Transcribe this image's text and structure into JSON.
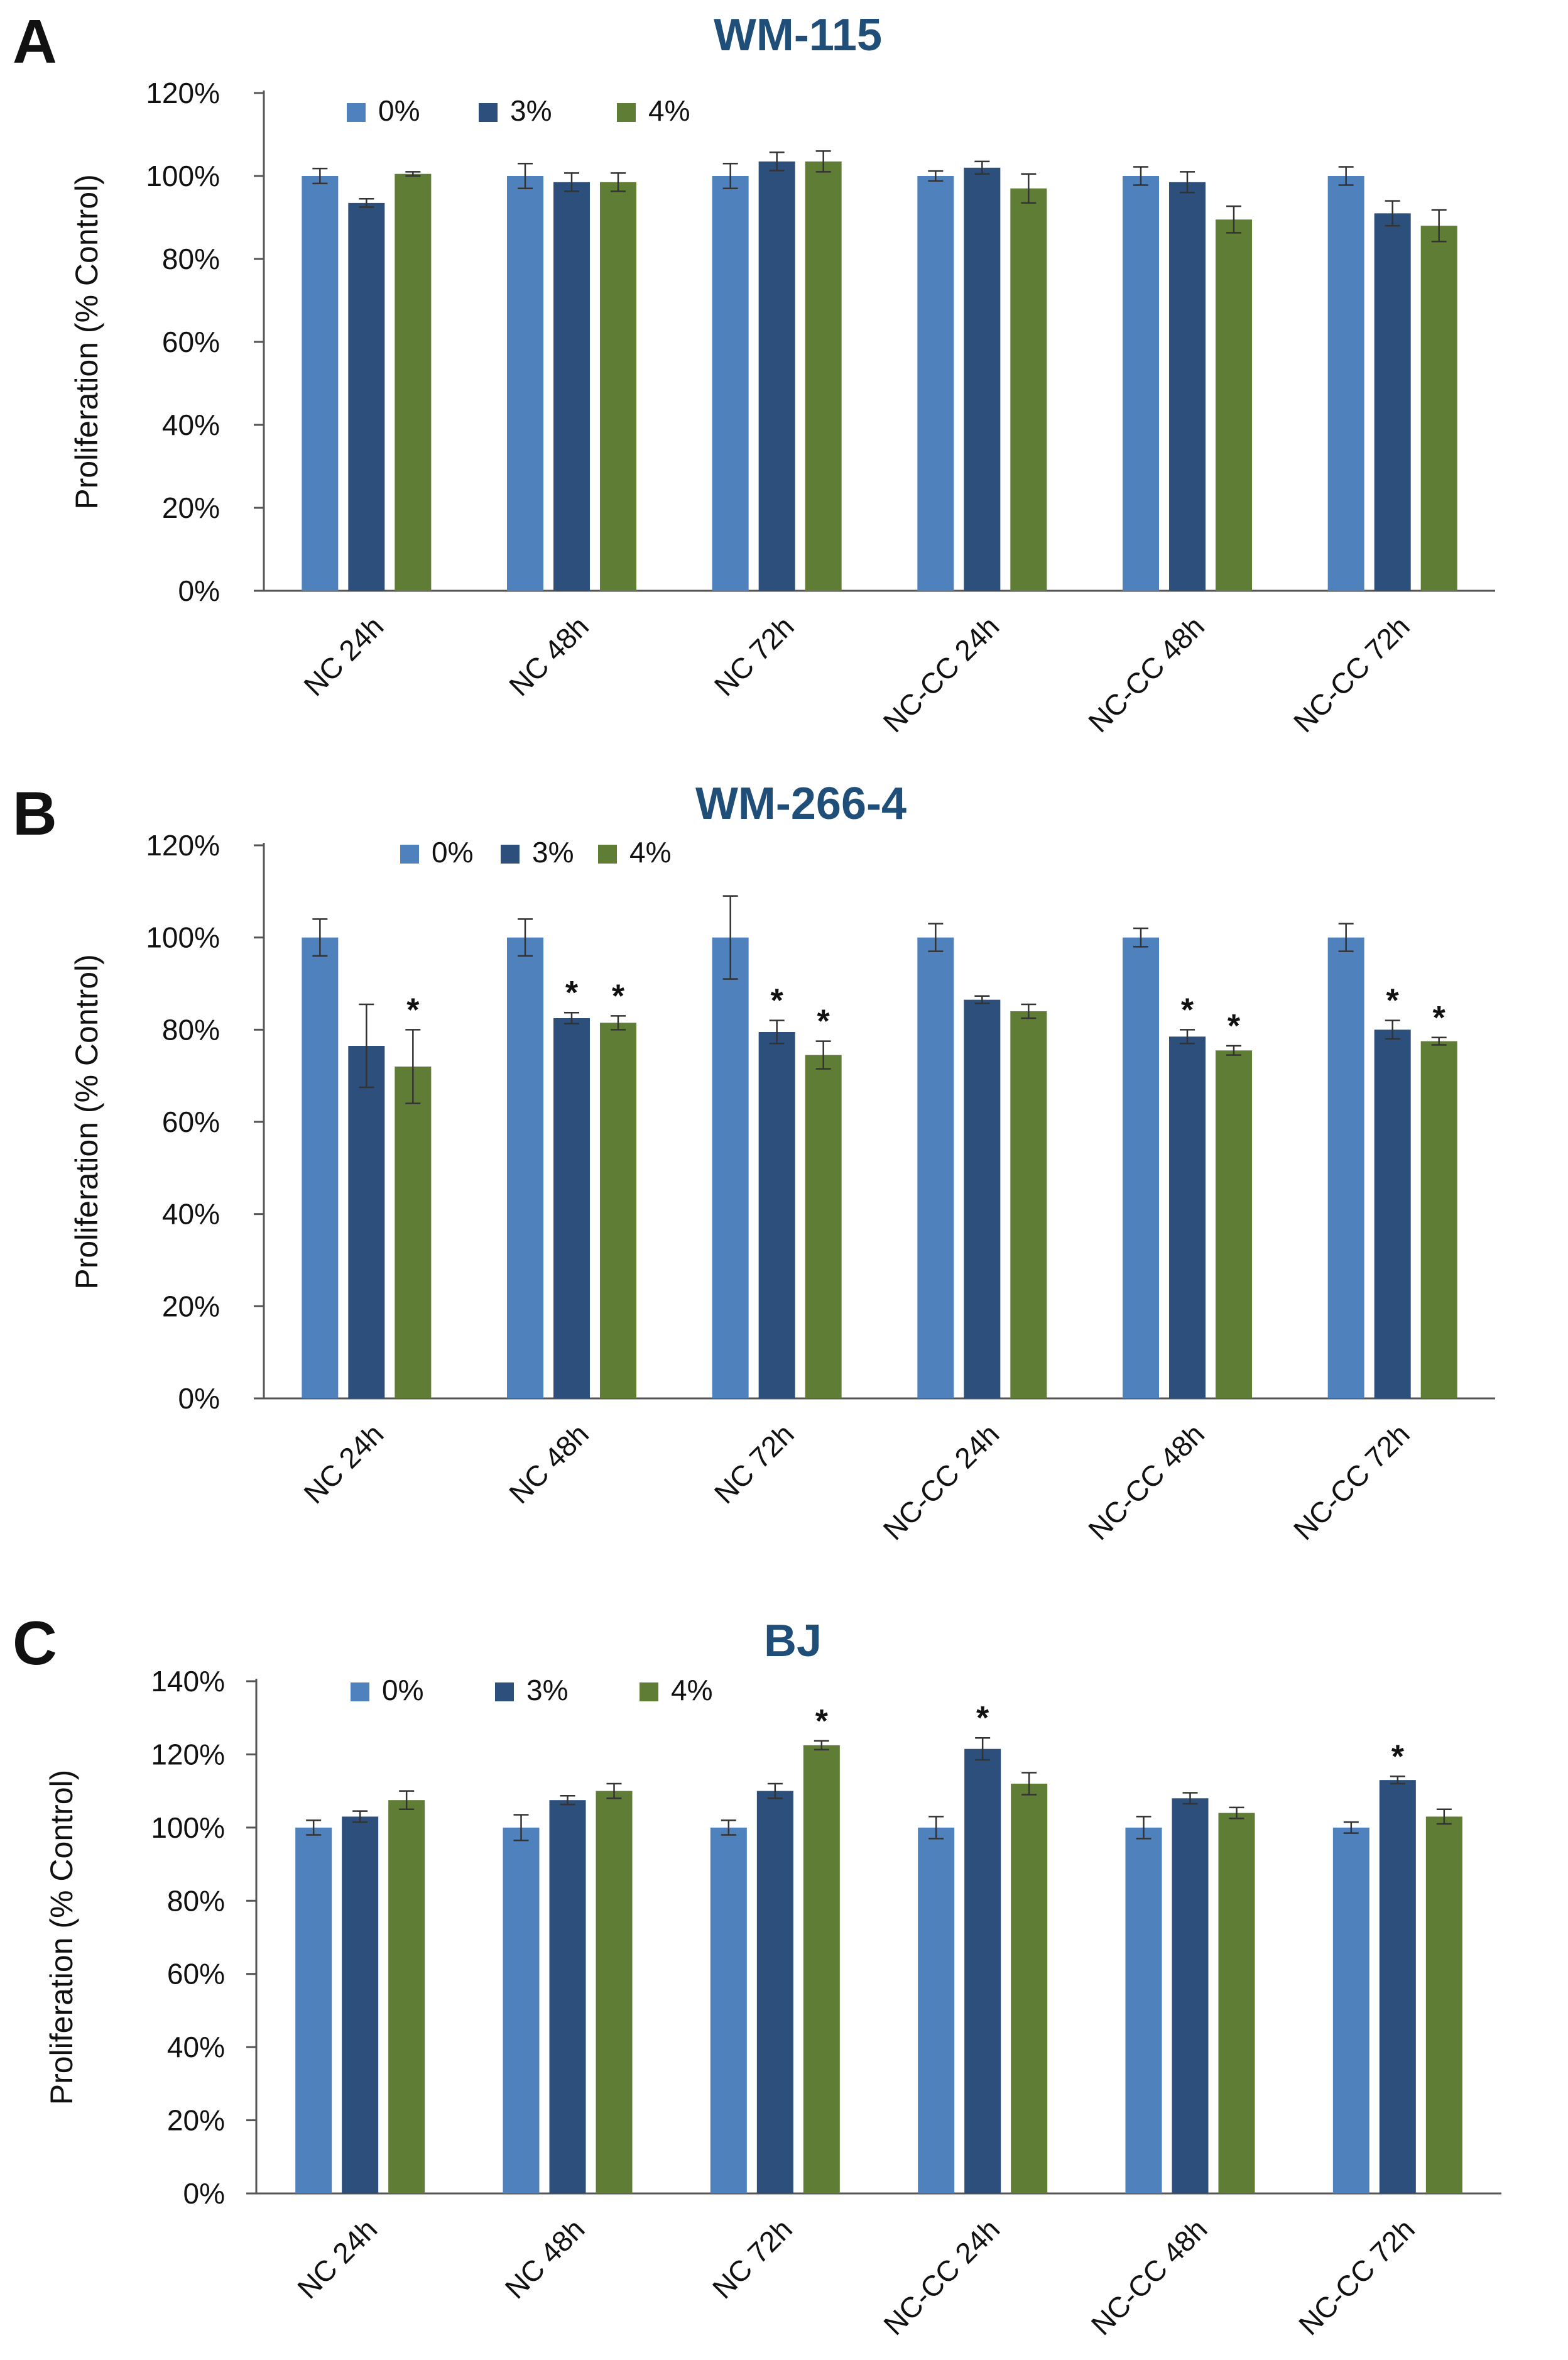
{
  "chart_data": [
    {
      "type": "bar",
      "panel": "A",
      "title": "WM-115",
      "ylabel": "Proliferation (% Control)",
      "xlabel": "",
      "ylim": [
        0,
        120
      ],
      "yticks": [
        0,
        20,
        40,
        60,
        80,
        100,
        120
      ],
      "ytick_labels": [
        "0%",
        "20%",
        "40%",
        "60%",
        "80%",
        "100%",
        "120%"
      ],
      "legend_position": "top-left",
      "categories": [
        "NC 24h",
        "NC 48h",
        "NC 72h",
        "NC-CC 24h",
        "NC-CC 48h",
        "NC-CC 72h"
      ],
      "series": [
        {
          "name": "0%",
          "color": "#4f81bd",
          "values": [
            100,
            100,
            100,
            100,
            100,
            100
          ],
          "errors": [
            1.8,
            3.0,
            3.0,
            1.2,
            2.2,
            2.2
          ],
          "stars": [
            false,
            false,
            false,
            false,
            false,
            false
          ]
        },
        {
          "name": "3%",
          "color": "#2c4f7c",
          "values": [
            93.5,
            98.5,
            103.5,
            102.0,
            98.5,
            91.0
          ],
          "errors": [
            1.0,
            2.2,
            2.2,
            1.5,
            2.5,
            3.0
          ],
          "stars": [
            false,
            false,
            false,
            false,
            false,
            false
          ]
        },
        {
          "name": "4%",
          "color": "#5f7d34",
          "values": [
            100.5,
            98.5,
            103.5,
            97.0,
            89.5,
            88.0
          ],
          "errors": [
            0.5,
            2.2,
            2.5,
            3.5,
            3.2,
            3.8
          ],
          "stars": [
            false,
            false,
            false,
            false,
            false,
            false
          ]
        }
      ]
    },
    {
      "type": "bar",
      "panel": "B",
      "title": "WM-266-4",
      "ylabel": "Proliferation (% Control)",
      "xlabel": "",
      "ylim": [
        0,
        120
      ],
      "yticks": [
        0,
        20,
        40,
        60,
        80,
        100,
        120
      ],
      "ytick_labels": [
        "0%",
        "20%",
        "40%",
        "60%",
        "80%",
        "100%",
        "120%"
      ],
      "legend_position": "top-left",
      "categories": [
        "NC 24h",
        "NC 48h",
        "NC 72h",
        "NC-CC 24h",
        "NC-CC 48h",
        "NC-CC 72h"
      ],
      "series": [
        {
          "name": "0%",
          "color": "#4f81bd",
          "values": [
            100,
            100,
            100,
            100,
            100,
            100
          ],
          "errors": [
            4.0,
            4.0,
            9.0,
            3.0,
            2.0,
            3.0
          ],
          "stars": [
            false,
            false,
            false,
            false,
            false,
            false
          ]
        },
        {
          "name": "3%",
          "color": "#2c4f7c",
          "values": [
            76.5,
            82.5,
            79.5,
            86.5,
            78.5,
            80.0
          ],
          "errors": [
            9.0,
            1.2,
            2.5,
            0.8,
            1.5,
            2.0
          ],
          "stars": [
            false,
            true,
            true,
            false,
            true,
            true
          ]
        },
        {
          "name": "4%",
          "color": "#5f7d34",
          "values": [
            72.0,
            81.5,
            74.5,
            84.0,
            75.5,
            77.5
          ],
          "errors": [
            8.0,
            1.5,
            3.0,
            1.5,
            1.0,
            0.8
          ],
          "stars": [
            true,
            true,
            true,
            false,
            true,
            true
          ]
        }
      ]
    },
    {
      "type": "bar",
      "panel": "C",
      "title": "BJ",
      "ylabel": "Proliferation (% Control)",
      "xlabel": "",
      "ylim": [
        0,
        140
      ],
      "yticks": [
        0,
        20,
        40,
        60,
        80,
        100,
        120,
        140
      ],
      "ytick_labels": [
        "0%",
        "20%",
        "40%",
        "60%",
        "80%",
        "100%",
        "120%",
        "140%"
      ],
      "legend_position": "top-left",
      "categories": [
        "NC 24h",
        "NC 48h",
        "NC 72h",
        "NC-CC 24h",
        "NC-CC 48h",
        "NC-CC 72h"
      ],
      "series": [
        {
          "name": "0%",
          "color": "#4f81bd",
          "values": [
            100,
            100,
            100,
            100,
            100,
            100
          ],
          "errors": [
            2.0,
            3.5,
            2.0,
            3.0,
            3.0,
            1.5
          ],
          "stars": [
            false,
            false,
            false,
            false,
            false,
            false
          ]
        },
        {
          "name": "3%",
          "color": "#2c4f7c",
          "values": [
            103.0,
            107.5,
            110.0,
            121.5,
            108.0,
            113.0
          ],
          "errors": [
            1.5,
            1.2,
            2.0,
            3.0,
            1.5,
            1.0
          ],
          "stars": [
            false,
            false,
            false,
            true,
            false,
            true
          ]
        },
        {
          "name": "4%",
          "color": "#5f7d34",
          "values": [
            107.5,
            110.0,
            122.5,
            112.0,
            104.0,
            103.0
          ],
          "errors": [
            2.5,
            2.0,
            1.2,
            3.0,
            1.5,
            2.0
          ],
          "stars": [
            false,
            false,
            true,
            false,
            false,
            false
          ]
        }
      ]
    }
  ]
}
